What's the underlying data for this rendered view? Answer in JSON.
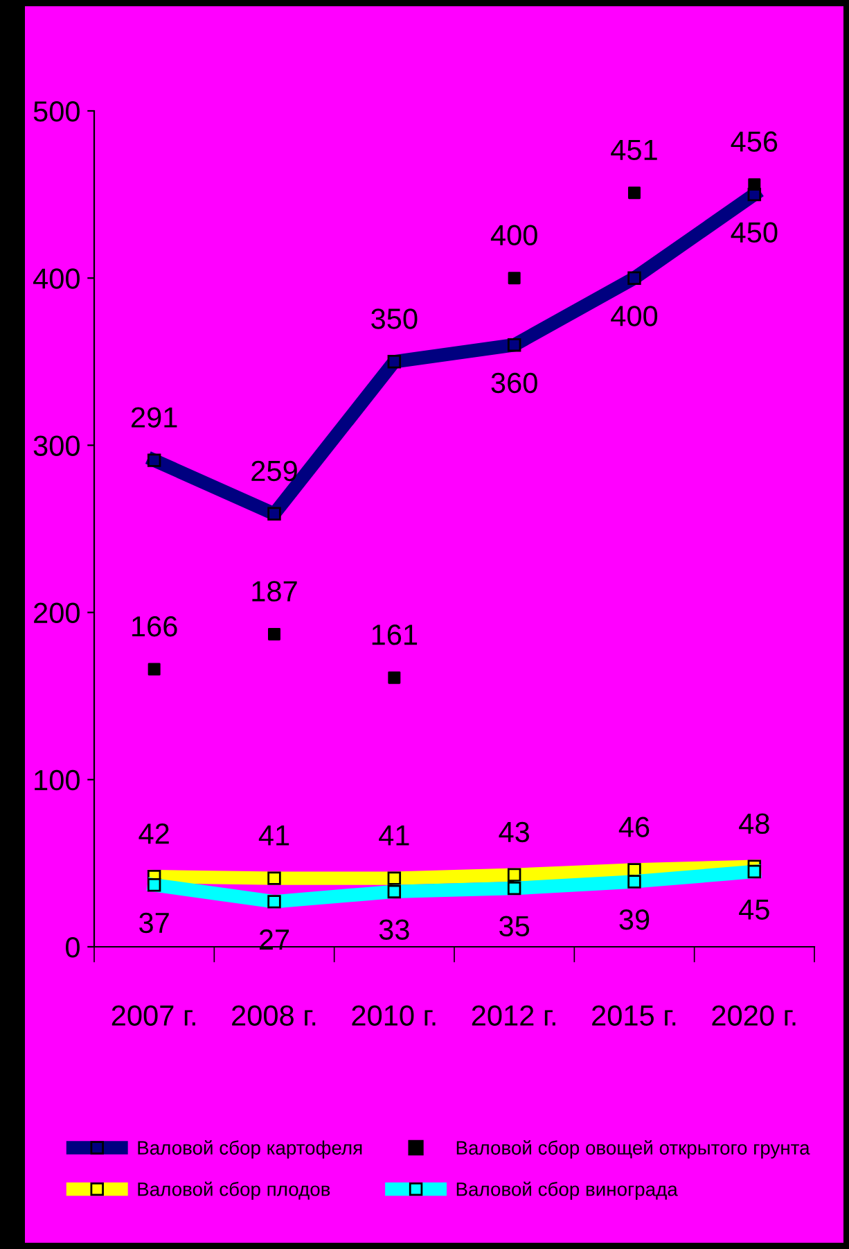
{
  "chart_data": {
    "type": "line",
    "categories": [
      "2007 г.",
      "2008 г.",
      "2010 г.",
      "2012 г.",
      "2015 г.",
      "2020 г."
    ],
    "series": [
      {
        "name": "Валовой сбор картофеля",
        "color": "#000080",
        "values": [
          291,
          259,
          350,
          360,
          400,
          450
        ]
      },
      {
        "name": "Валовой сбор овощей открытого грунта",
        "color": "#000000",
        "type": "scatter",
        "values": [
          166,
          187,
          161,
          400,
          451,
          456
        ]
      },
      {
        "name": "Валовой сбор плодов",
        "color": "#ffff00",
        "values": [
          42,
          41,
          41,
          43,
          46,
          48
        ]
      },
      {
        "name": "Валовой сбор винограда",
        "color": "#00ffff",
        "values": [
          37,
          27,
          33,
          35,
          39,
          45
        ]
      }
    ],
    "ylim": [
      0,
      500
    ],
    "yticks": [
      0,
      100,
      200,
      300,
      400,
      500
    ],
    "grid": false,
    "legend": "bottom",
    "data_labels": true,
    "marker": "square"
  }
}
